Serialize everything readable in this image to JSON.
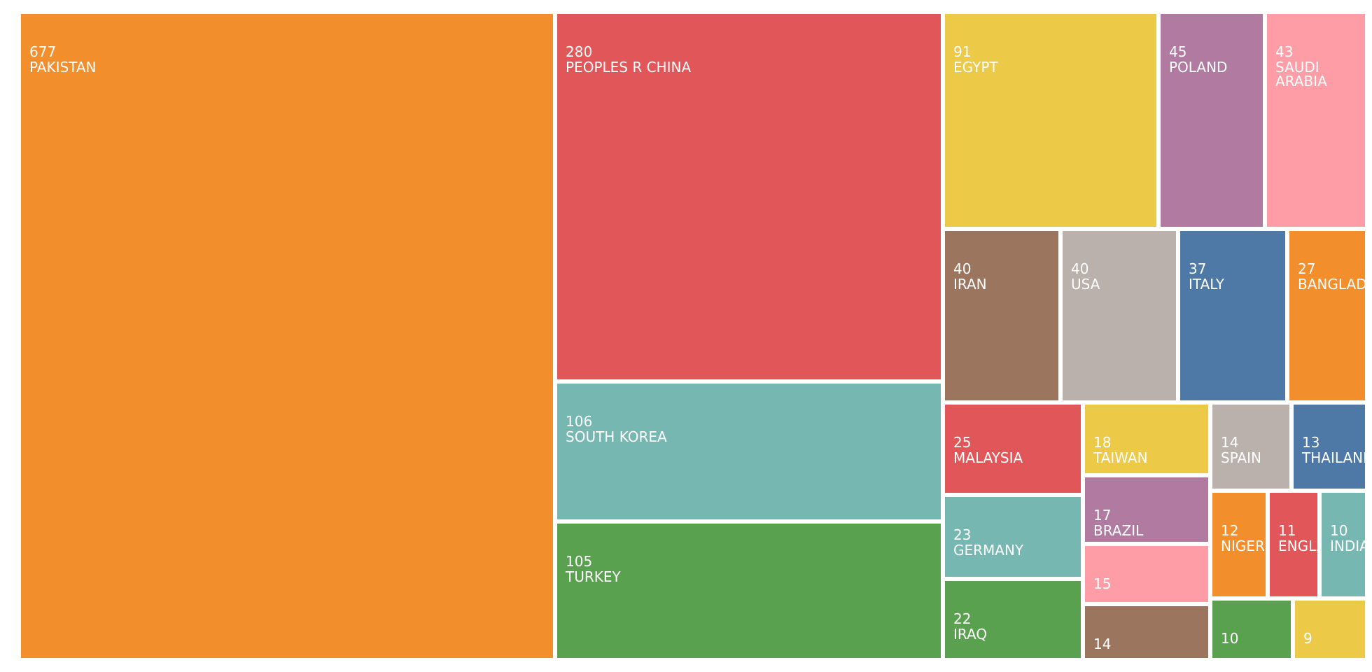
{
  "chart_data": {
    "type": "treemap",
    "items": [
      {
        "label": "PAKISTAN",
        "value": 677,
        "color": "#F28E2B"
      },
      {
        "label": "PEOPLES R CHINA",
        "value": 280,
        "color": "#E15759"
      },
      {
        "label": "SOUTH KOREA",
        "value": 106,
        "color": "#76B7B2"
      },
      {
        "label": "TURKEY",
        "value": 105,
        "color": "#59A14F"
      },
      {
        "label": "EGYPT",
        "value": 91,
        "color": "#EDC948"
      },
      {
        "label": "POLAND",
        "value": 45,
        "color": "#B07AA1"
      },
      {
        "label": "SAUDI ARABIA",
        "value": 43,
        "color": "#FF9DA7"
      },
      {
        "label": "IRAN",
        "value": 40,
        "color": "#9C755F"
      },
      {
        "label": "USA",
        "value": 40,
        "color": "#BAB0AC"
      },
      {
        "label": "ITALY",
        "value": 37,
        "color": "#4E79A7"
      },
      {
        "label": "BANGLADESH",
        "value": 27,
        "color": "#F28E2B"
      },
      {
        "label": "MALAYSIA",
        "value": 25,
        "color": "#E15759"
      },
      {
        "label": "GERMANY",
        "value": 23,
        "color": "#76B7B2"
      },
      {
        "label": "IRAQ",
        "value": 22,
        "color": "#59A14F"
      },
      {
        "label": "TAIWAN",
        "value": 18,
        "color": "#EDC948"
      },
      {
        "label": "BRAZIL",
        "value": 17,
        "color": "#B07AA1"
      },
      {
        "label": "",
        "value": 15,
        "color": "#FF9DA7"
      },
      {
        "label": "",
        "value": 14,
        "color": "#9C755F"
      },
      {
        "label": "SPAIN",
        "value": 14,
        "color": "#BAB0AC"
      },
      {
        "label": "THAILAND",
        "value": 13,
        "color": "#4E79A7"
      },
      {
        "label": "NIGERIA",
        "value": 12,
        "color": "#F28E2B"
      },
      {
        "label": "ENGLAND",
        "value": 11,
        "color": "#E15759"
      },
      {
        "label": "INDIA",
        "value": 10,
        "color": "#76B7B2"
      },
      {
        "label": "",
        "value": 10,
        "color": "#59A14F"
      },
      {
        "label": "",
        "value": 9,
        "color": "#EDC948"
      }
    ]
  }
}
